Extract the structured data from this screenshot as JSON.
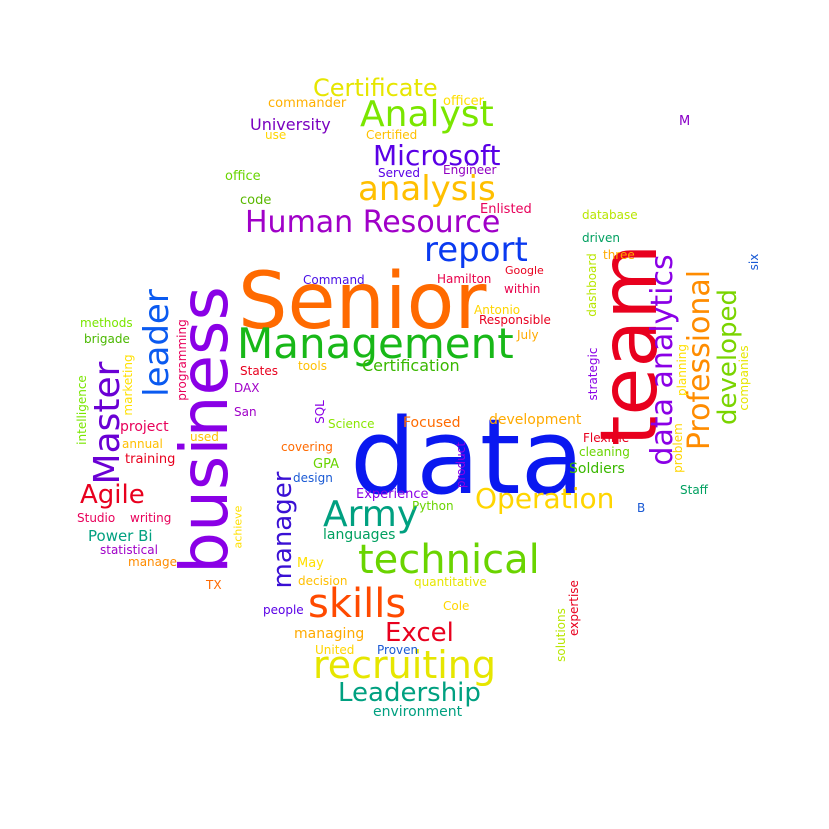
{
  "words": [
    {
      "text": "data",
      "color": "#0a18f0"
    },
    {
      "text": "Senior",
      "color": "#ff6a00"
    },
    {
      "text": "business",
      "color": "#8a00e6"
    },
    {
      "text": "team",
      "color": "#e8001e"
    },
    {
      "text": "Management",
      "color": "#18b818"
    },
    {
      "text": "technical",
      "color": "#6ad400"
    },
    {
      "text": "recruiting",
      "color": "#e6e600"
    },
    {
      "text": "skills",
      "color": "#ff4a00"
    },
    {
      "text": "Army",
      "color": "#00a080"
    },
    {
      "text": "Master",
      "color": "#6a00d4"
    },
    {
      "text": "Professional",
      "color": "#ff8c00"
    },
    {
      "text": "data analytics",
      "color": "#8a00e6"
    },
    {
      "text": "analysis",
      "color": "#ffbf00"
    },
    {
      "text": "Analyst",
      "color": "#7ae600"
    },
    {
      "text": "Human Resource",
      "color": "#a000c8"
    },
    {
      "text": "report",
      "color": "#0a3af0"
    },
    {
      "text": "leader",
      "color": "#0a5af0"
    },
    {
      "text": "Microsoft",
      "color": "#5a00e6"
    },
    {
      "text": "Certificate",
      "color": "#e6e600"
    },
    {
      "text": "Leadership",
      "color": "#00a080"
    },
    {
      "text": "Operation",
      "color": "#ffd500"
    },
    {
      "text": "manager",
      "color": "#3a10d4"
    },
    {
      "text": "developed",
      "color": "#7ad400"
    },
    {
      "text": "Excel",
      "color": "#e8001e"
    },
    {
      "text": "Agile",
      "color": "#e8001e"
    },
    {
      "text": "Certification",
      "color": "#3ab800"
    },
    {
      "text": "University",
      "color": "#7a00c0"
    },
    {
      "text": "commander",
      "color": "#ffb000"
    },
    {
      "text": "officer",
      "color": "#ffe000"
    },
    {
      "text": "M",
      "color": "#8a00c8"
    },
    {
      "text": "Certified",
      "color": "#ffc000"
    },
    {
      "text": "use",
      "color": "#ffd500"
    },
    {
      "text": "Served",
      "color": "#5a00e6"
    },
    {
      "text": "Engineer",
      "color": "#9000c0"
    },
    {
      "text": "office",
      "color": "#6ad400"
    },
    {
      "text": "code",
      "color": "#5ab800"
    },
    {
      "text": "Enlisted",
      "color": "#e8005a"
    },
    {
      "text": "database",
      "color": "#b8e600"
    },
    {
      "text": "driven",
      "color": "#00a060"
    },
    {
      "text": "three",
      "color": "#ffaa00"
    },
    {
      "text": "dashboard",
      "color": "#b8e600"
    },
    {
      "text": "six",
      "color": "#1a5ad4"
    },
    {
      "text": "Command",
      "color": "#4a10e6"
    },
    {
      "text": "Hamilton",
      "color": "#e8004a"
    },
    {
      "text": "Google",
      "color": "#e8001e"
    },
    {
      "text": "within",
      "color": "#e8004a"
    },
    {
      "text": "Antonio",
      "color": "#ffd500"
    },
    {
      "text": "Responsible",
      "color": "#e8001e"
    },
    {
      "text": "July",
      "color": "#ffaa00"
    },
    {
      "text": "methods",
      "color": "#7ae600"
    },
    {
      "text": "brigade",
      "color": "#4ab800"
    },
    {
      "text": "programming",
      "color": "#e8005a"
    },
    {
      "text": "marketing",
      "color": "#ffe000"
    },
    {
      "text": "intelligence",
      "color": "#7ae600"
    },
    {
      "text": "States",
      "color": "#e8001e"
    },
    {
      "text": "tools",
      "color": "#ffbf00"
    },
    {
      "text": "DAX",
      "color": "#a000c8"
    },
    {
      "text": "strategic",
      "color": "#8a00e6"
    },
    {
      "text": "planning",
      "color": "#ffe000"
    },
    {
      "text": "companies",
      "color": "#e6e600"
    },
    {
      "text": "San",
      "color": "#a000c8"
    },
    {
      "text": "SQL",
      "color": "#8a00e6"
    },
    {
      "text": "Science",
      "color": "#8ae600"
    },
    {
      "text": "Focused",
      "color": "#ff6a00"
    },
    {
      "text": "development",
      "color": "#ffaa00"
    },
    {
      "text": "project",
      "color": "#e8005a"
    },
    {
      "text": "used",
      "color": "#ffbf00"
    },
    {
      "text": "annual",
      "color": "#ffbf00"
    },
    {
      "text": "training",
      "color": "#e8001e"
    },
    {
      "text": "covering",
      "color": "#ff6a00"
    },
    {
      "text": "product",
      "color": "#8a00e6"
    },
    {
      "text": "problem",
      "color": "#ffd500"
    },
    {
      "text": "Flexible",
      "color": "#e8001e"
    },
    {
      "text": "cleaning",
      "color": "#6ad400"
    },
    {
      "text": "GPA",
      "color": "#6ad400"
    },
    {
      "text": "design",
      "color": "#1a5ad4"
    },
    {
      "text": "Soldiers",
      "color": "#3ab800"
    },
    {
      "text": "Staff",
      "color": "#00a060"
    },
    {
      "text": "Experience",
      "color": "#8a00e6"
    },
    {
      "text": "Python",
      "color": "#6ad400"
    },
    {
      "text": "B",
      "color": "#1a5ad4"
    },
    {
      "text": "Studio",
      "color": "#e8005a"
    },
    {
      "text": "writing",
      "color": "#e8005a"
    },
    {
      "text": "achieve",
      "color": "#ffe000"
    },
    {
      "text": "Power Bi",
      "color": "#00a080"
    },
    {
      "text": "languages",
      "color": "#00a060"
    },
    {
      "text": "statistical",
      "color": "#a000c8"
    },
    {
      "text": "manage",
      "color": "#ff8c00"
    },
    {
      "text": "May",
      "color": "#ffe000"
    },
    {
      "text": "decision",
      "color": "#ffbf00"
    },
    {
      "text": "quantitative",
      "color": "#e6e600"
    },
    {
      "text": "TX",
      "color": "#ff6a00"
    },
    {
      "text": "people",
      "color": "#5a00e6"
    },
    {
      "text": "Cole",
      "color": "#ffd500"
    },
    {
      "text": "solutions",
      "color": "#b8e600"
    },
    {
      "text": "expertise",
      "color": "#e8001e"
    },
    {
      "text": "managing",
      "color": "#ffaa00"
    },
    {
      "text": "United",
      "color": "#ffd500"
    },
    {
      "text": "Proven",
      "color": "#1a5ad4"
    },
    {
      "text": "environment",
      "color": "#00a080"
    }
  ]
}
